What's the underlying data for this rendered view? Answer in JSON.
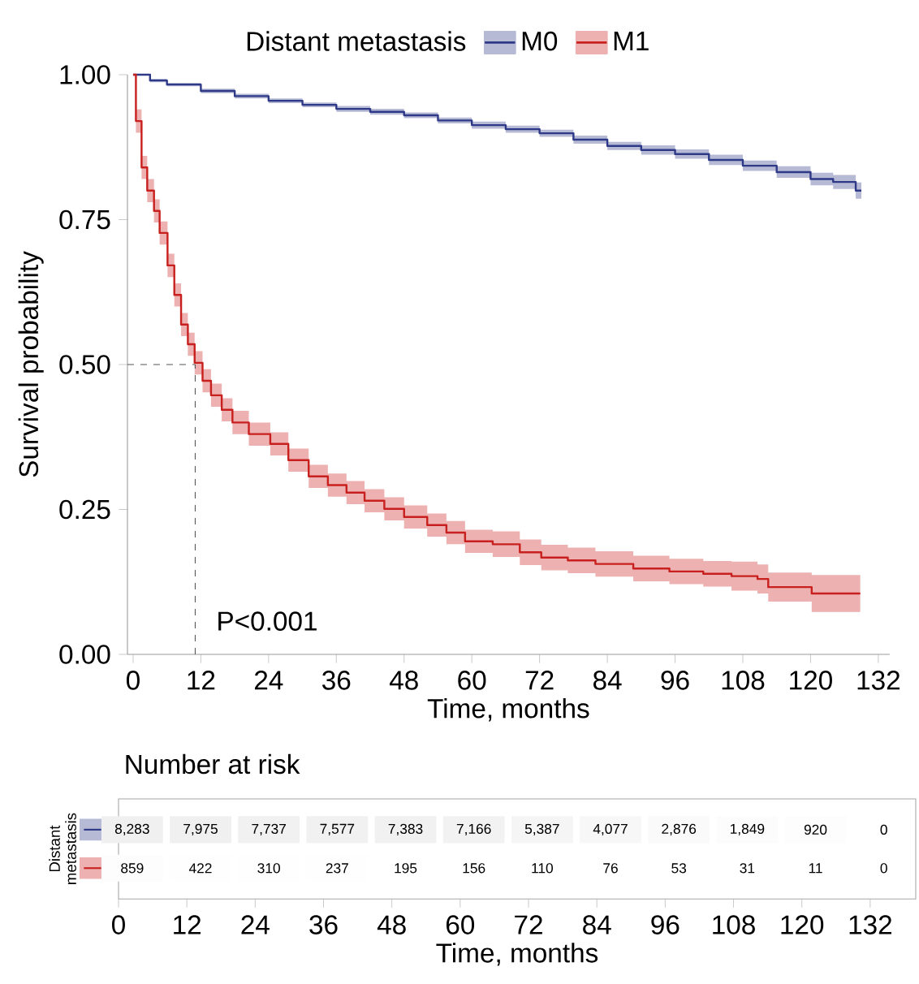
{
  "chart_data": [
    {
      "type": "step",
      "xlabel": "Time, months",
      "ylabel": "Survival probability",
      "legend_title": "Distant metastasis",
      "legend": "top",
      "xlim": [
        -1,
        134
      ],
      "ylim": [
        0,
        1
      ],
      "xticks": [
        0,
        12,
        24,
        36,
        48,
        60,
        72,
        84,
        96,
        108,
        120,
        132
      ],
      "yticks": [
        {
          "value": 0,
          "label": "0.00"
        },
        {
          "value": 0.25,
          "label": "0.25"
        },
        {
          "value": 0.5,
          "label": "0.50"
        },
        {
          "value": 0.75,
          "label": "0.75"
        },
        {
          "value": 1,
          "label": "1.00"
        }
      ],
      "ref_lines": [
        {
          "axis": "y",
          "value": 0.5,
          "line_style": "dashed",
          "color": "#555555"
        },
        {
          "axis": "x",
          "value": 11,
          "line_style": "dashed",
          "color": "#555555"
        }
      ],
      "annotations": [
        "P<0.001"
      ],
      "series": [
        {
          "name": "M0",
          "color": "#2e3a87",
          "x": [
            0,
            3,
            6,
            12,
            18,
            24,
            30,
            36,
            42,
            48,
            54,
            60,
            66,
            72,
            78,
            84,
            90,
            96,
            102,
            108,
            114,
            120,
            124,
            128,
            129
          ],
          "values": [
            1.0,
            0.99,
            0.983,
            0.972,
            0.963,
            0.955,
            0.948,
            0.941,
            0.936,
            0.93,
            0.921,
            0.913,
            0.906,
            0.899,
            0.888,
            0.877,
            0.87,
            0.863,
            0.853,
            0.843,
            0.832,
            0.82,
            0.815,
            0.8,
            0.8
          ],
          "lower": [
            1.0,
            0.987,
            0.98,
            0.968,
            0.959,
            0.951,
            0.944,
            0.936,
            0.931,
            0.925,
            0.916,
            0.907,
            0.9,
            0.893,
            0.881,
            0.87,
            0.862,
            0.855,
            0.844,
            0.834,
            0.822,
            0.809,
            0.803,
            0.786,
            0.785
          ],
          "upper": [
            1.0,
            0.993,
            0.986,
            0.976,
            0.967,
            0.959,
            0.952,
            0.946,
            0.941,
            0.935,
            0.926,
            0.919,
            0.912,
            0.905,
            0.895,
            0.884,
            0.878,
            0.871,
            0.862,
            0.852,
            0.842,
            0.831,
            0.827,
            0.814,
            0.815
          ]
        },
        {
          "name": "M1",
          "color": "#c8201e",
          "x": [
            0,
            0.5,
            1.5,
            2.5,
            3.7,
            4.7,
            6.1,
            7.3,
            8.5,
            9.7,
            10.9,
            12.3,
            13.8,
            15.7,
            17.6,
            20.5,
            24.3,
            27.5,
            31.1,
            34.5,
            37.8,
            41,
            44.5,
            48,
            52.1,
            55.5,
            58.8,
            63.7,
            68.5,
            72.3,
            77,
            81.9,
            88.6,
            95,
            101,
            106,
            110.6,
            112.5,
            119.5,
            120.2,
            128.8
          ],
          "values": [
            1.0,
            0.92,
            0.84,
            0.8,
            0.765,
            0.727,
            0.671,
            0.62,
            0.569,
            0.535,
            0.503,
            0.472,
            0.447,
            0.422,
            0.4,
            0.38,
            0.363,
            0.335,
            0.307,
            0.292,
            0.279,
            0.265,
            0.251,
            0.237,
            0.223,
            0.21,
            0.195,
            0.19,
            0.176,
            0.167,
            0.162,
            0.156,
            0.148,
            0.143,
            0.139,
            0.135,
            0.13,
            0.116,
            0.116,
            0.105,
            0.105
          ],
          "lower": [
            1.0,
            0.9,
            0.82,
            0.78,
            0.745,
            0.707,
            0.651,
            0.6,
            0.549,
            0.515,
            0.483,
            0.452,
            0.427,
            0.402,
            0.38,
            0.36,
            0.343,
            0.315,
            0.287,
            0.272,
            0.259,
            0.245,
            0.231,
            0.217,
            0.203,
            0.19,
            0.175,
            0.168,
            0.154,
            0.145,
            0.14,
            0.134,
            0.126,
            0.121,
            0.117,
            0.11,
            0.105,
            0.091,
            0.091,
            0.073,
            0.073
          ],
          "upper": [
            1.0,
            0.94,
            0.86,
            0.82,
            0.785,
            0.747,
            0.691,
            0.64,
            0.589,
            0.555,
            0.523,
            0.492,
            0.467,
            0.442,
            0.42,
            0.4,
            0.383,
            0.355,
            0.327,
            0.312,
            0.299,
            0.285,
            0.271,
            0.257,
            0.243,
            0.23,
            0.215,
            0.212,
            0.198,
            0.189,
            0.184,
            0.178,
            0.17,
            0.165,
            0.161,
            0.16,
            0.155,
            0.141,
            0.141,
            0.137,
            0.137
          ]
        }
      ]
    },
    {
      "type": "heatmap",
      "title": "Number at risk",
      "xlabel": "Time, months",
      "ylabel": "Distant metastasis",
      "categories": [
        "0",
        "12",
        "24",
        "36",
        "48",
        "60",
        "72",
        "84",
        "96",
        "108",
        "120",
        "132"
      ],
      "y_categories": [
        null,
        null
      ],
      "colors": [
        "#2e3a87",
        "#c8201e"
      ],
      "cells": [
        [
          8283,
          7975,
          7737,
          7577,
          7383,
          7166,
          5387,
          4077,
          2876,
          1849,
          920,
          0
        ],
        [
          859,
          422,
          310,
          237,
          195,
          156,
          110,
          76,
          53,
          31,
          11,
          0
        ]
      ],
      "cell_labels": [
        [
          "8,283",
          "7,975",
          "7,737",
          "7,577",
          "7,383",
          "7,166",
          "5,387",
          "4,077",
          "2,876",
          "1,849",
          "920",
          "0"
        ],
        [
          "859",
          "422",
          "310",
          "237",
          "195",
          "156",
          "110",
          "76",
          "53",
          "31",
          "11",
          "0"
        ]
      ]
    }
  ]
}
